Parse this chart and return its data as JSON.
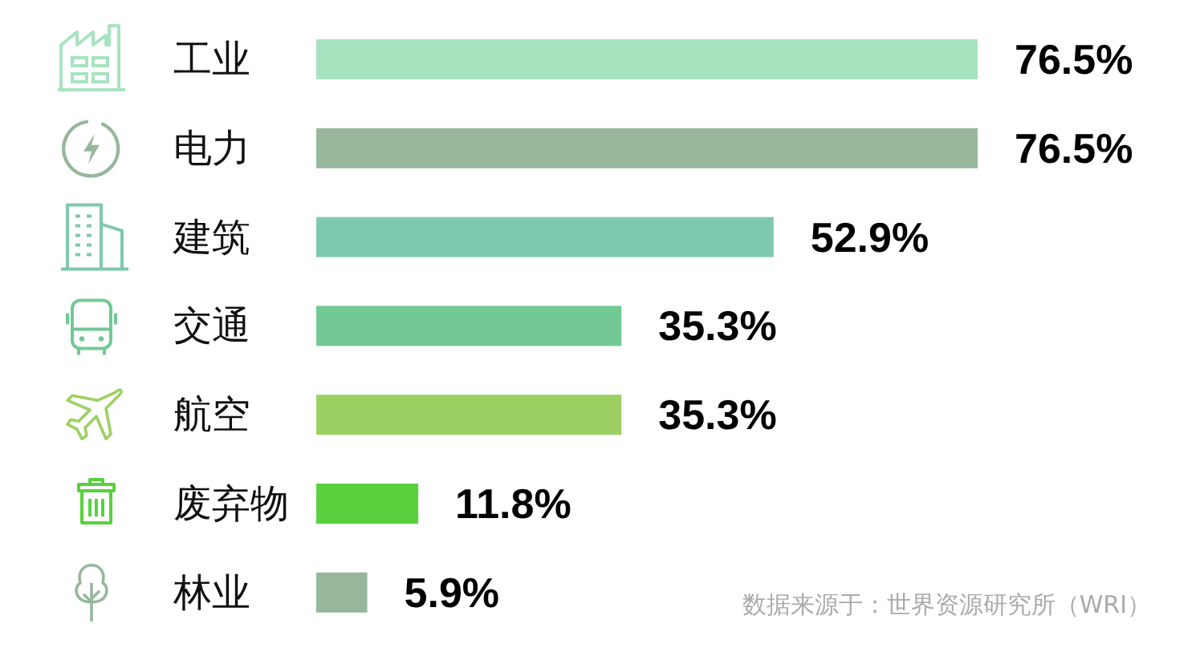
{
  "chart_data": {
    "type": "bar",
    "orientation": "horizontal",
    "categories": [
      "工业",
      "电力",
      "建筑",
      "交通",
      "航空",
      "废弃物",
      "林业"
    ],
    "values": [
      76.5,
      76.5,
      52.9,
      35.3,
      35.3,
      11.8,
      5.9
    ],
    "colors": [
      "#a8e3c0",
      "#97b79c",
      "#7fc8b0",
      "#72c994",
      "#9dd063",
      "#59d13e",
      "#97b79c"
    ],
    "value_labels": [
      "76.5%",
      "76.5%",
      "52.9%",
      "35.3%",
      "35.3%",
      "11.8%",
      "5.9%"
    ],
    "annotations": [
      "数据来源于：世界资源研究所（WRI）"
    ]
  }
}
